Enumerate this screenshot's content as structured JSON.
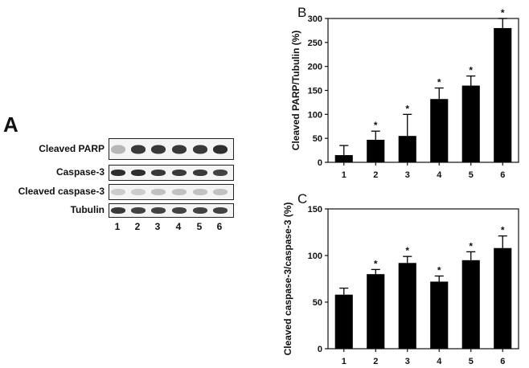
{
  "panel_a": {
    "letter": "A",
    "rows": [
      {
        "label": "Cleaved PARP",
        "band_darkness": [
          0.25,
          0.85,
          0.85,
          0.85,
          0.85,
          0.9
        ]
      },
      {
        "label": "Caspase-3",
        "band_darkness": [
          0.9,
          0.9,
          0.85,
          0.85,
          0.85,
          0.8
        ]
      },
      {
        "label": "Cleaved caspase-3",
        "band_darkness": [
          0.15,
          0.15,
          0.2,
          0.2,
          0.2,
          0.2
        ]
      },
      {
        "label": "Tubulin",
        "band_darkness": [
          0.85,
          0.8,
          0.8,
          0.8,
          0.8,
          0.8
        ]
      }
    ],
    "lanes": [
      "1",
      "2",
      "3",
      "4",
      "5",
      "6"
    ]
  },
  "chart_data": [
    {
      "panel": "B",
      "type": "bar",
      "categories": [
        "1",
        "2",
        "3",
        "4",
        "5",
        "6"
      ],
      "values": [
        15,
        47,
        55,
        132,
        160,
        280
      ],
      "errors": [
        20,
        18,
        45,
        23,
        20,
        20
      ],
      "significance": [
        "",
        "*",
        "*",
        "*",
        "*",
        "*"
      ],
      "xlabel": "",
      "ylabel": "Cleaved PARP/Tubulin (%)",
      "ylim": [
        0,
        300
      ],
      "yticks": [
        "0",
        "50",
        "100",
        "150",
        "200",
        "250",
        "300"
      ]
    },
    {
      "panel": "C",
      "type": "bar",
      "categories": [
        "1",
        "2",
        "3",
        "4",
        "5",
        "6"
      ],
      "values": [
        58,
        80,
        92,
        72,
        95,
        108
      ],
      "errors": [
        7,
        5,
        7,
        6,
        9,
        13
      ],
      "significance": [
        "",
        "*",
        "*",
        "*",
        "*",
        "*"
      ],
      "xlabel": "",
      "ylabel": "Cleaved caspase-3/caspase-3 (%)",
      "ylim": [
        0,
        150
      ],
      "yticks": [
        "0",
        "50",
        "100",
        "150"
      ]
    }
  ]
}
